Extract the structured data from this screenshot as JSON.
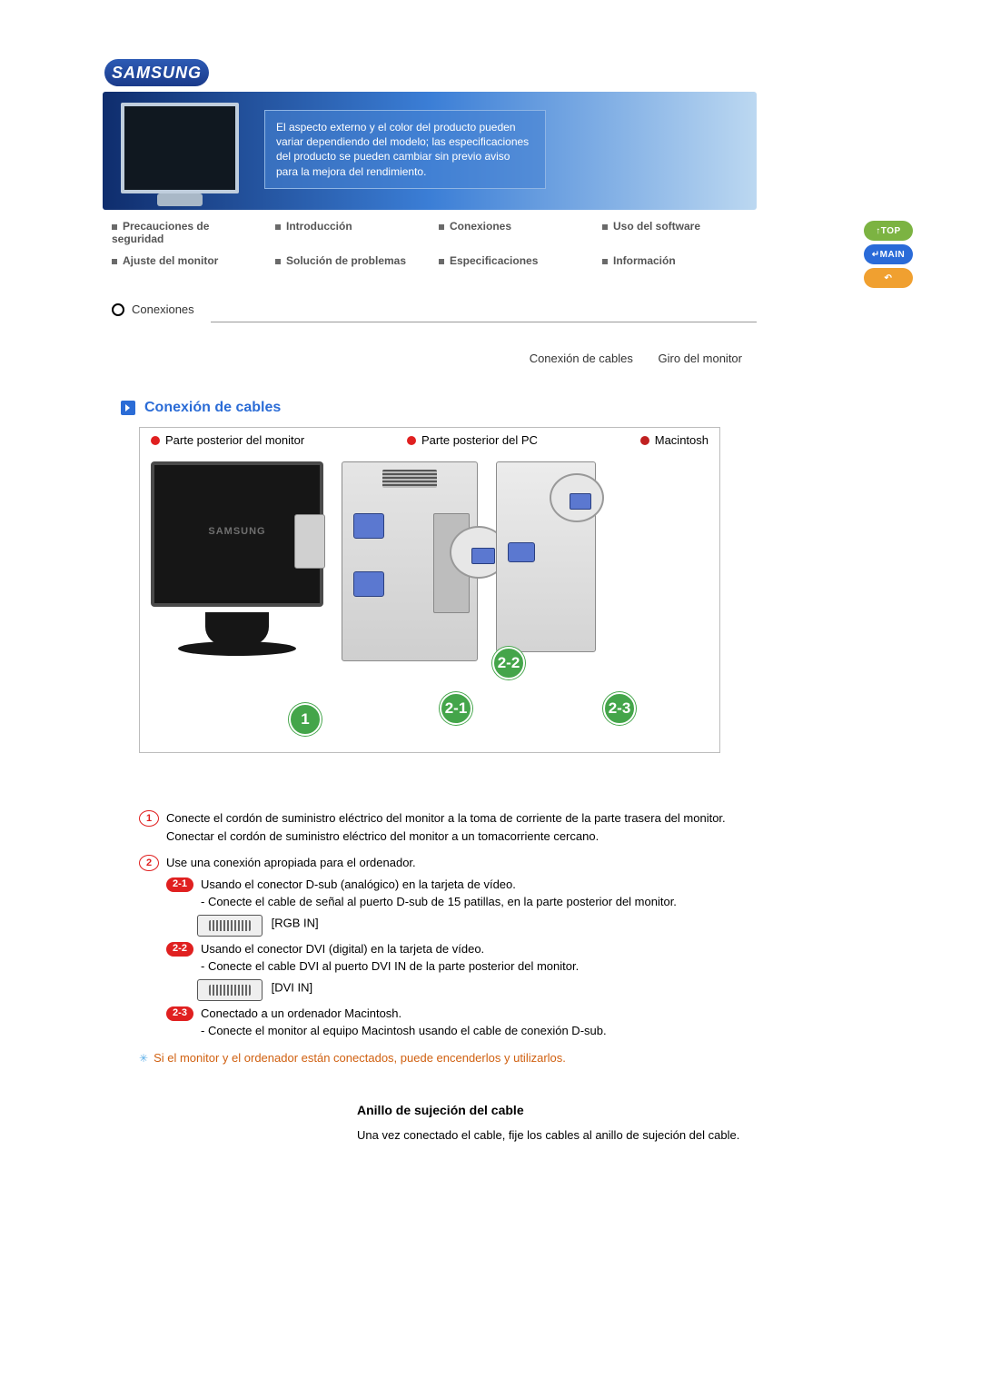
{
  "brand": "SAMSUNG",
  "banner_notice": "El aspecto externo y el color del producto pueden variar dependiendo del modelo; las especificaciones del producto se pueden cambiar sin previo aviso para la mejora del rendimiento.",
  "nav": {
    "r1c1": "Precauciones de seguridad",
    "r1c2": "Introducción",
    "r1c3": "Conexiones",
    "r1c4": "Uso del software",
    "r2c1": "Ajuste del monitor",
    "r2c2": "Solución de problemas",
    "r2c3": "Especificaciones",
    "r2c4": "Información"
  },
  "side": {
    "top": "TOP",
    "main": "MAIN",
    "back": "↶"
  },
  "tab_active": "Conexiones",
  "sub_tabs": {
    "a": "Conexión de cables",
    "b": "Giro del monitor"
  },
  "section_title": "Conexión de cables",
  "diagram_labels": {
    "monitor": "Parte posterior del monitor",
    "pc": "Parte posterior del PC",
    "mac": "Macintosh"
  },
  "monitor_brand": "SAMSUNG",
  "callouts": {
    "c1": "1",
    "c21": "2-1",
    "c22": "2-2",
    "c23": "2-3"
  },
  "steps": {
    "s1": {
      "n": "1",
      "l1": "Conecte el cordón de suministro eléctrico del monitor a la toma de corriente de la parte trasera del monitor.",
      "l2": "Conectar el cordón de suministro eléctrico del monitor a un tomacorriente cercano."
    },
    "s2": {
      "n": "2",
      "lead": "Use una conexión apropiada para el ordenador.",
      "a": {
        "pill": "2-1",
        "t": "Usando el conector D-sub (analógico) en la tarjeta de vídeo.",
        "d": "- Conecte el cable de señal al puerto D-sub de 15 patillas, en la parte posterior del monitor.",
        "port": "[RGB IN]"
      },
      "b": {
        "pill": "2-2",
        "t": "Usando el conector DVI (digital) en la tarjeta de vídeo.",
        "d": "- Conecte el cable DVI al puerto DVI IN de la parte posterior del monitor.",
        "port": "[DVI IN]"
      },
      "c": {
        "pill": "2-3",
        "t": "Conectado a un ordenador Macintosh.",
        "d": "- Conecte el monitor al equipo Macintosh usando el cable de conexión D-sub."
      }
    },
    "note": "Si el monitor y el ordenador están conectados, puede encenderlos y utilizarlos."
  },
  "ring": {
    "title": "Anillo de sujeción del cable",
    "text": "Una vez conectado el cable, fije los cables al anillo de sujeción del cable."
  }
}
